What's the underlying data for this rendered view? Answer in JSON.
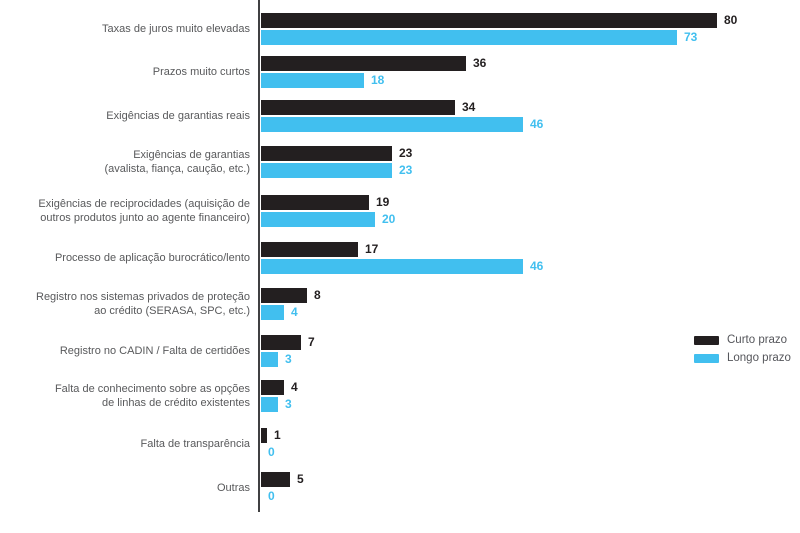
{
  "chart_data": {
    "type": "bar",
    "orientation": "horizontal",
    "categories": [
      [
        "Taxas de juros muito elevadas"
      ],
      [
        "Prazos muito curtos"
      ],
      [
        "Exigências de garantias reais"
      ],
      [
        "Exigências de garantias",
        "(avalista, fiança, caução, etc.)"
      ],
      [
        "Exigências de reciprocidades (aquisição de",
        "outros produtos junto ao agente financeiro)"
      ],
      [
        "Processo de aplicação burocrático/lento"
      ],
      [
        "Registro nos sistemas privados de proteção",
        "ao crédito (SERASA, SPC, etc.)"
      ],
      [
        "Registro no CADIN / Falta de certidões"
      ],
      [
        "Falta de conhecimento sobre as opções",
        "de linhas de crédito existentes"
      ],
      [
        "Falta de transparência"
      ],
      [
        "Outras"
      ]
    ],
    "series": [
      {
        "name": "Curto prazo",
        "color": "#231f20",
        "values": [
          80,
          36,
          34,
          23,
          19,
          17,
          8,
          7,
          4,
          1,
          5
        ]
      },
      {
        "name": "Longo prazo",
        "color": "#41bfef",
        "values": [
          73,
          18,
          46,
          23,
          20,
          46,
          4,
          3,
          3,
          0,
          0
        ]
      }
    ],
    "xlim": [
      0,
      85
    ],
    "value_labels": true,
    "grid": false,
    "legend_position": "right-middle"
  },
  "legend": {
    "items": [
      {
        "label": "Curto prazo",
        "color": "#231f20"
      },
      {
        "label": "Longo prazo",
        "color": "#41bfef"
      }
    ]
  },
  "colors": {
    "curto_prazo": "#231f20",
    "longo_prazo": "#41bfef",
    "label_text": "#58595b",
    "axis_line": "#404042"
  }
}
